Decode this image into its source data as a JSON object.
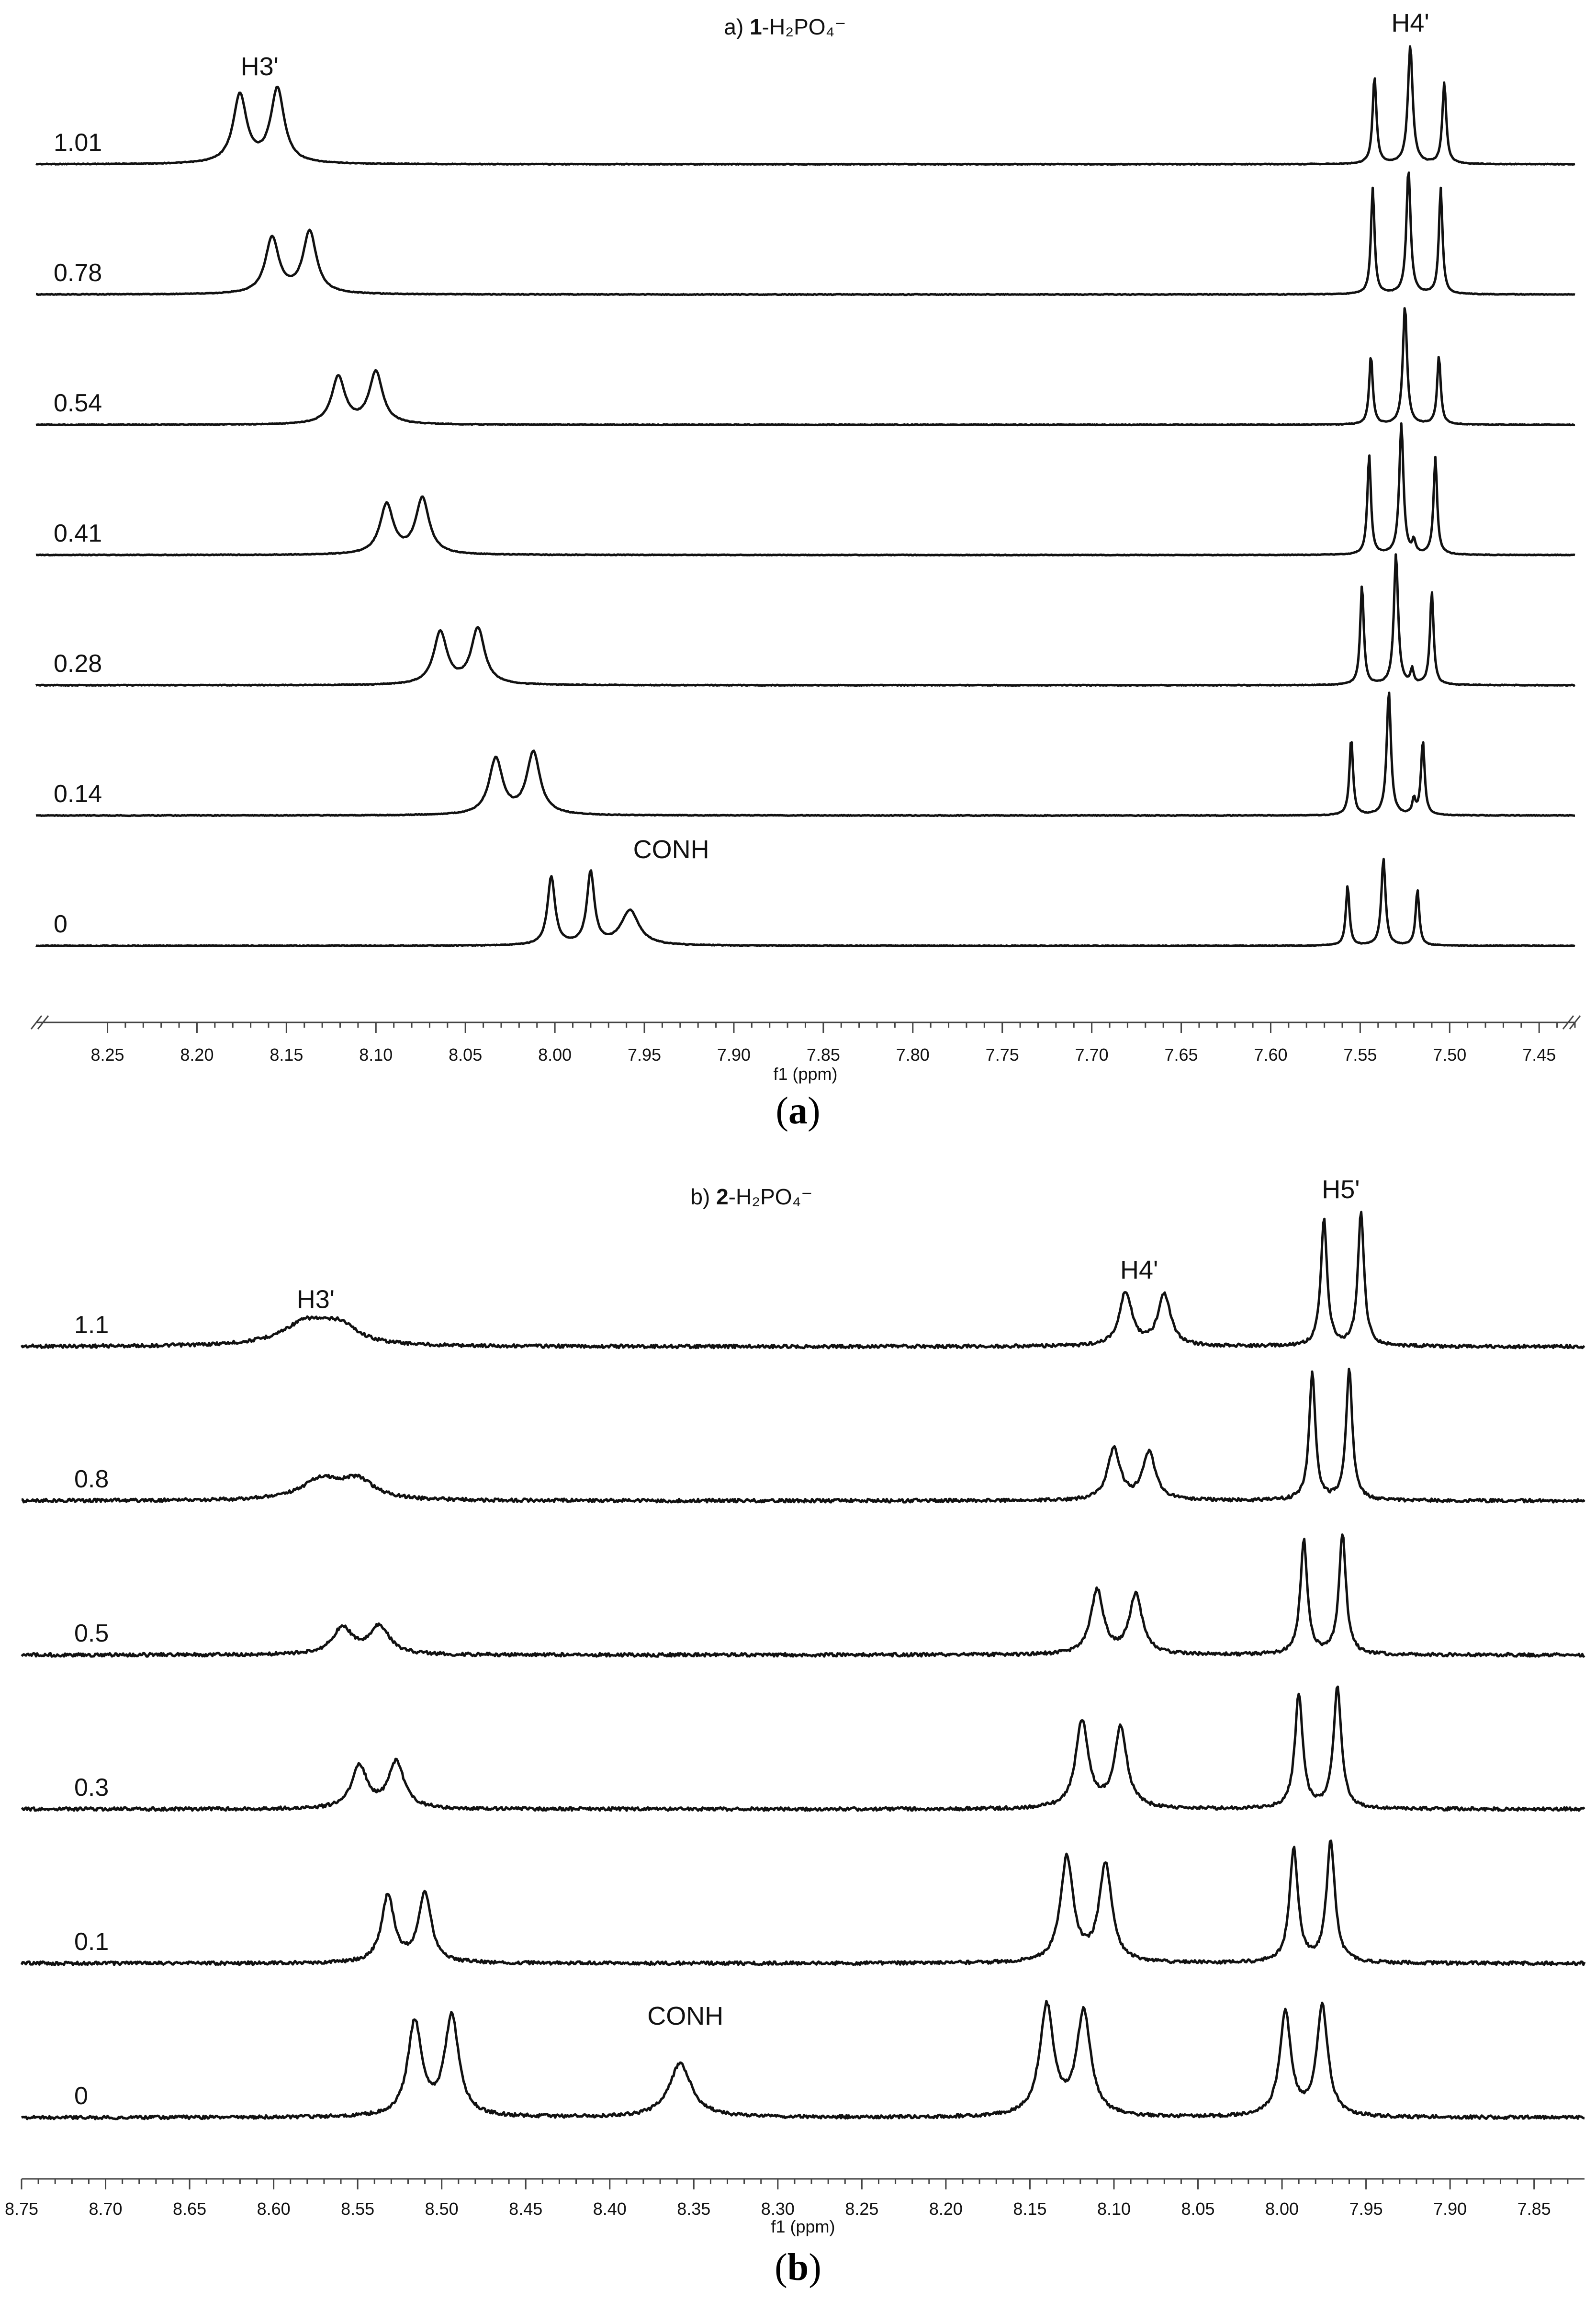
{
  "figure": [
    {
      "panel_id": "a",
      "title_parts": {
        "prefix": "a) ",
        "bold": "1",
        "suffix": "-H₂PO₄⁻"
      },
      "caption": {
        "open": "(",
        "letter": "a",
        "close": ")"
      },
      "chart_data": {
        "type": "line",
        "subtype": "stacked NMR spectra",
        "xlabel": "f1 (ppm)",
        "xlim": [
          8.29,
          7.43
        ],
        "x_reversed": true,
        "x_ticks": [
          "8.25",
          "8.20",
          "8.15",
          "8.10",
          "8.05",
          "8.00",
          "7.95",
          "7.90",
          "7.85",
          "7.80",
          "7.75",
          "7.70",
          "7.65",
          "7.60",
          "7.55",
          "7.50",
          "7.45"
        ],
        "grid": false,
        "peak_labels": [
          {
            "text": "H3'",
            "x": 8.165,
            "trace": "1.01"
          },
          {
            "text": "H4'",
            "x": 7.522,
            "trace": "1.01"
          },
          {
            "text": "CONH",
            "x": 7.935,
            "trace": "0"
          }
        ],
        "series": [
          {
            "name": "1.01",
            "peaks": [
              {
                "x": 8.176,
                "h": 0.55,
                "w": 0.0045
              },
              {
                "x": 8.155,
                "h": 0.6,
                "w": 0.0045
              },
              {
                "x": 7.542,
                "h": 0.7,
                "w": 0.0013
              },
              {
                "x": 7.522,
                "h": 0.95,
                "w": 0.0016
              },
              {
                "x": 7.503,
                "h": 0.65,
                "w": 0.0013
              }
            ]
          },
          {
            "name": "0.78",
            "peaks": [
              {
                "x": 8.158,
                "h": 0.45,
                "w": 0.0045
              },
              {
                "x": 8.137,
                "h": 0.5,
                "w": 0.0045
              },
              {
                "x": 7.543,
                "h": 0.85,
                "w": 0.0012
              },
              {
                "x": 7.523,
                "h": 1.0,
                "w": 0.0014
              },
              {
                "x": 7.505,
                "h": 0.85,
                "w": 0.0012
              }
            ]
          },
          {
            "name": "0.54",
            "peaks": [
              {
                "x": 8.121,
                "h": 0.38,
                "w": 0.0045
              },
              {
                "x": 8.1,
                "h": 0.42,
                "w": 0.0045
              },
              {
                "x": 7.544,
                "h": 0.55,
                "w": 0.0012
              },
              {
                "x": 7.525,
                "h": 0.95,
                "w": 0.0014
              },
              {
                "x": 7.506,
                "h": 0.55,
                "w": 0.0012
              }
            ]
          },
          {
            "name": "0.41",
            "peaks": [
              {
                "x": 8.094,
                "h": 0.4,
                "w": 0.0045
              },
              {
                "x": 8.074,
                "h": 0.45,
                "w": 0.0045
              },
              {
                "x": 7.545,
                "h": 0.8,
                "w": 0.0012
              },
              {
                "x": 7.527,
                "h": 1.05,
                "w": 0.0014
              },
              {
                "x": 7.52,
                "h": 0.1,
                "w": 0.001
              },
              {
                "x": 7.508,
                "h": 0.78,
                "w": 0.0012
              }
            ]
          },
          {
            "name": "0.28",
            "peaks": [
              {
                "x": 8.064,
                "h": 0.42,
                "w": 0.0045
              },
              {
                "x": 8.043,
                "h": 0.45,
                "w": 0.0045
              },
              {
                "x": 7.549,
                "h": 0.8,
                "w": 0.0012
              },
              {
                "x": 7.53,
                "h": 1.05,
                "w": 0.0014
              },
              {
                "x": 7.521,
                "h": 0.12,
                "w": 0.001
              },
              {
                "x": 7.51,
                "h": 0.75,
                "w": 0.0012
              }
            ]
          },
          {
            "name": "0.14",
            "peaks": [
              {
                "x": 8.033,
                "h": 0.45,
                "w": 0.0045
              },
              {
                "x": 8.012,
                "h": 0.5,
                "w": 0.0045
              },
              {
                "x": 7.555,
                "h": 0.62,
                "w": 0.0012
              },
              {
                "x": 7.534,
                "h": 1.0,
                "w": 0.0014
              },
              {
                "x": 7.52,
                "h": 0.12,
                "w": 0.001
              },
              {
                "x": 7.515,
                "h": 0.6,
                "w": 0.0012
              }
            ]
          },
          {
            "name": "0",
            "peaks": [
              {
                "x": 8.002,
                "h": 0.55,
                "w": 0.0025
              },
              {
                "x": 7.98,
                "h": 0.58,
                "w": 0.0025
              },
              {
                "x": 7.958,
                "h": 0.28,
                "w": 0.006
              },
              {
                "x": 7.557,
                "h": 0.48,
                "w": 0.0012
              },
              {
                "x": 7.537,
                "h": 0.7,
                "w": 0.0014
              },
              {
                "x": 7.518,
                "h": 0.45,
                "w": 0.0012
              }
            ]
          }
        ]
      }
    },
    {
      "panel_id": "b",
      "title_parts": {
        "prefix": "b) ",
        "bold": "2",
        "suffix": "-H₂PO₄⁻"
      },
      "caption": {
        "open": "(",
        "letter": "b",
        "close": ")"
      },
      "chart_data": {
        "type": "line",
        "subtype": "stacked NMR spectra",
        "xlabel": "f1 (ppm)",
        "xlim": [
          8.75,
          7.82
        ],
        "x_reversed": true,
        "x_ticks": [
          "8.75",
          "8.70",
          "8.65",
          "8.60",
          "8.55",
          "8.50",
          "8.45",
          "8.40",
          "8.35",
          "8.30",
          "8.25",
          "8.20",
          "8.15",
          "8.10",
          "8.05",
          "8.00",
          "7.95",
          "7.90",
          "7.85"
        ],
        "grid": false,
        "peak_labels": [
          {
            "text": "H3'",
            "x": 8.575,
            "trace": "1.1"
          },
          {
            "text": "H4'",
            "x": 8.085,
            "trace": "1.1"
          },
          {
            "text": "H5'",
            "x": 7.965,
            "trace": "1.1"
          },
          {
            "text": "CONH",
            "x": 8.355,
            "trace": "0"
          }
        ],
        "series": [
          {
            "name": "1.1",
            "peaks": [
              {
                "x": 8.58,
                "h": 0.18,
                "w": 0.018
              },
              {
                "x": 8.56,
                "h": 0.12,
                "w": 0.012
              },
              {
                "x": 8.093,
                "h": 0.4,
                "w": 0.0045
              },
              {
                "x": 8.07,
                "h": 0.38,
                "w": 0.0045
              },
              {
                "x": 7.975,
                "h": 0.95,
                "w": 0.0022
              },
              {
                "x": 7.953,
                "h": 1.0,
                "w": 0.0022
              }
            ]
          },
          {
            "name": "0.8",
            "peaks": [
              {
                "x": 8.572,
                "h": 0.15,
                "w": 0.014
              },
              {
                "x": 8.55,
                "h": 0.14,
                "w": 0.012
              },
              {
                "x": 8.1,
                "h": 0.38,
                "w": 0.0045
              },
              {
                "x": 8.079,
                "h": 0.36,
                "w": 0.0045
              },
              {
                "x": 7.982,
                "h": 0.95,
                "w": 0.0022
              },
              {
                "x": 7.96,
                "h": 0.98,
                "w": 0.0022
              }
            ]
          },
          {
            "name": "0.5",
            "peaks": [
              {
                "x": 8.559,
                "h": 0.2,
                "w": 0.007
              },
              {
                "x": 8.537,
                "h": 0.21,
                "w": 0.007
              },
              {
                "x": 8.11,
                "h": 0.48,
                "w": 0.0045
              },
              {
                "x": 8.087,
                "h": 0.45,
                "w": 0.0045
              },
              {
                "x": 7.987,
                "h": 0.85,
                "w": 0.0025
              },
              {
                "x": 7.964,
                "h": 0.9,
                "w": 0.0025
              }
            ]
          },
          {
            "name": "0.3",
            "peaks": [
              {
                "x": 8.549,
                "h": 0.32,
                "w": 0.0055
              },
              {
                "x": 8.527,
                "h": 0.35,
                "w": 0.0055
              },
              {
                "x": 8.119,
                "h": 0.65,
                "w": 0.0045
              },
              {
                "x": 8.096,
                "h": 0.6,
                "w": 0.0045
              },
              {
                "x": 7.99,
                "h": 0.85,
                "w": 0.0028
              },
              {
                "x": 7.967,
                "h": 0.9,
                "w": 0.0028
              }
            ]
          },
          {
            "name": "0.1",
            "peaks": [
              {
                "x": 8.532,
                "h": 0.5,
                "w": 0.0045
              },
              {
                "x": 8.51,
                "h": 0.52,
                "w": 0.0045
              },
              {
                "x": 8.128,
                "h": 0.78,
                "w": 0.0045
              },
              {
                "x": 8.105,
                "h": 0.73,
                "w": 0.0045
              },
              {
                "x": 7.993,
                "h": 0.85,
                "w": 0.003
              },
              {
                "x": 7.971,
                "h": 0.9,
                "w": 0.003
              }
            ]
          },
          {
            "name": "0",
            "peaks": [
              {
                "x": 8.516,
                "h": 0.7,
                "w": 0.005
              },
              {
                "x": 8.494,
                "h": 0.75,
                "w": 0.005
              },
              {
                "x": 8.358,
                "h": 0.4,
                "w": 0.008
              },
              {
                "x": 8.14,
                "h": 0.82,
                "w": 0.005
              },
              {
                "x": 8.118,
                "h": 0.77,
                "w": 0.005
              },
              {
                "x": 7.998,
                "h": 0.78,
                "w": 0.004
              },
              {
                "x": 7.976,
                "h": 0.82,
                "w": 0.004
              }
            ]
          }
        ]
      }
    }
  ]
}
